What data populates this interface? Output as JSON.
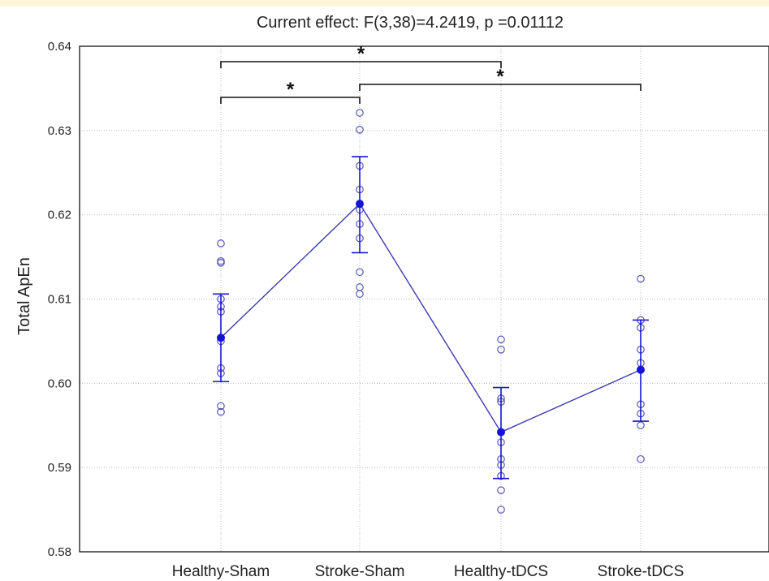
{
  "chart_data": {
    "type": "scatter",
    "title": "Current effect: F(3,38)=4.2419, p =0.01112",
    "xlabel": "",
    "ylabel": "Total ApEn",
    "ylim": [
      0.58,
      0.64
    ],
    "yticks": [
      0.58,
      0.59,
      0.6,
      0.61,
      0.62,
      0.63,
      0.64
    ],
    "ytick_labels": [
      "0.58",
      "0.59",
      "0.60",
      "0.61",
      "0.62",
      "0.63",
      "0.64"
    ],
    "categories": [
      "Healthy-Sham",
      "Stroke-Sham",
      "Healthy-tDCS",
      "Stroke-tDCS"
    ],
    "grid": true,
    "means": [
      0.6054,
      0.6213,
      0.5942,
      0.6016
    ],
    "ci_low": [
      0.6002,
      0.6155,
      0.5887,
      0.5955
    ],
    "ci_high": [
      0.6106,
      0.6269,
      0.5995,
      0.6075
    ],
    "points": [
      [
        0.6166,
        0.6145,
        0.6143,
        0.61,
        0.6091,
        0.6085,
        0.605,
        0.6018,
        0.6012,
        0.5973,
        0.5966
      ],
      [
        0.6321,
        0.6301,
        0.6258,
        0.623,
        0.6206,
        0.6189,
        0.6172,
        0.6132,
        0.6114,
        0.6106
      ],
      [
        0.6052,
        0.604,
        0.5982,
        0.5978,
        0.593,
        0.591,
        0.5903,
        0.589,
        0.5873,
        0.585
      ],
      [
        0.6124,
        0.6075,
        0.6066,
        0.604,
        0.6024,
        0.5975,
        0.5964,
        0.595,
        0.591
      ]
    ],
    "significance": [
      {
        "from": 0,
        "to": 1,
        "label": "*"
      },
      {
        "from": 0,
        "to": 2,
        "label": "*"
      },
      {
        "from": 1,
        "to": 3,
        "label": "*"
      }
    ],
    "colors": {
      "mean": "#1414d6",
      "line": "#3a3ab0",
      "points": "#5555b8",
      "grid": "#b8b8b8",
      "axis": "#000000"
    }
  }
}
